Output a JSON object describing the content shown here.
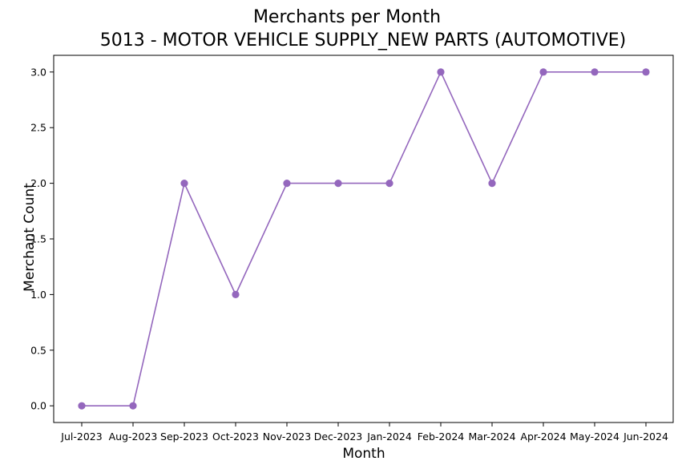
{
  "chart_data": {
    "type": "line",
    "title": "Merchants per Month",
    "subtitle": "5013 - MOTOR VEHICLE SUPPLY_NEW PARTS (AUTOMOTIVE)",
    "xlabel": "Month",
    "ylabel": "Merchant Count",
    "categories": [
      "Jul-2023",
      "Aug-2023",
      "Sep-2023",
      "Oct-2023",
      "Nov-2023",
      "Dec-2023",
      "Jan-2024",
      "Feb-2024",
      "Mar-2024",
      "Apr-2024",
      "May-2024",
      "Jun-2024"
    ],
    "series": [
      {
        "name": "Merchant Count",
        "values": [
          0,
          0,
          2,
          1,
          2,
          2,
          2,
          3,
          2,
          3,
          3,
          3
        ],
        "color": "#9467bd"
      }
    ],
    "ylim": [
      -0.15,
      3.15
    ],
    "yticks": [
      "0.0",
      "0.5",
      "1.0",
      "1.5",
      "2.0",
      "2.5",
      "3.0"
    ],
    "grid": false,
    "legend": "none"
  }
}
